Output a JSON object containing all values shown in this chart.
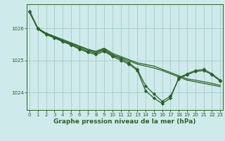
{
  "background_color": "#ceeaea",
  "grid_color": "#a8cccc",
  "line_color": "#2d612d",
  "xlabel": "Graphe pression niveau de la mer (hPa)",
  "xlabel_fontsize": 6.5,
  "tick_fontsize": 5,
  "xlim": [
    -0.3,
    23.3
  ],
  "ylim": [
    1023.45,
    1026.75
  ],
  "yticks": [
    1024,
    1025,
    1026
  ],
  "xticks": [
    0,
    1,
    2,
    3,
    4,
    5,
    6,
    7,
    8,
    9,
    10,
    11,
    12,
    13,
    14,
    15,
    16,
    17,
    18,
    19,
    20,
    21,
    22,
    23
  ],
  "series": [
    {
      "x": [
        0,
        1,
        2,
        3,
        4,
        5,
        6,
        7,
        8,
        9,
        10,
        11,
        12,
        13,
        14,
        15,
        16,
        17,
        18,
        19,
        20,
        21,
        22,
        23
      ],
      "y": [
        1026.55,
        1026.0,
        1025.85,
        1025.75,
        1025.65,
        1025.55,
        1025.45,
        1025.35,
        1025.28,
        1025.38,
        1025.22,
        1025.12,
        1025.02,
        1024.92,
        1024.87,
        1024.82,
        1024.72,
        1024.62,
        1024.52,
        1024.42,
        1024.38,
        1024.33,
        1024.28,
        1024.22
      ],
      "marker": null,
      "lw": 0.9
    },
    {
      "x": [
        0,
        1,
        2,
        3,
        4,
        5,
        6,
        7,
        8,
        9,
        10,
        11,
        12,
        13,
        14,
        15,
        16,
        17,
        18,
        19,
        20,
        21,
        22,
        23
      ],
      "y": [
        1026.52,
        1026.0,
        1025.83,
        1025.73,
        1025.62,
        1025.52,
        1025.42,
        1025.32,
        1025.25,
        1025.35,
        1025.18,
        1025.08,
        1024.98,
        1024.88,
        1024.82,
        1024.76,
        1024.68,
        1024.58,
        1024.48,
        1024.38,
        1024.33,
        1024.28,
        1024.23,
        1024.18
      ],
      "marker": null,
      "lw": 0.9
    },
    {
      "x": [
        0,
        1,
        2,
        3,
        4,
        5,
        6,
        7,
        8,
        9,
        10,
        11,
        12,
        13,
        14,
        15,
        16,
        17,
        18,
        19,
        20,
        21,
        22,
        23
      ],
      "y": [
        1026.52,
        1026.0,
        1025.82,
        1025.72,
        1025.6,
        1025.5,
        1025.38,
        1025.28,
        1025.22,
        1025.32,
        1025.15,
        1025.05,
        1024.92,
        1024.72,
        1024.2,
        1023.95,
        1023.72,
        1023.88,
        1024.42,
        1024.55,
        1024.65,
        1024.68,
        1024.55,
        1024.35
      ],
      "marker": "D",
      "lw": 0.9
    },
    {
      "x": [
        0,
        1,
        2,
        3,
        4,
        5,
        6,
        7,
        8,
        9,
        10,
        11,
        12,
        13,
        14,
        15,
        16,
        17,
        18,
        19,
        20,
        21,
        22,
        23
      ],
      "y": [
        1026.5,
        1025.98,
        1025.8,
        1025.7,
        1025.58,
        1025.48,
        1025.35,
        1025.25,
        1025.18,
        1025.28,
        1025.12,
        1025.0,
        1024.88,
        1024.68,
        1024.05,
        1023.82,
        1023.65,
        1023.82,
        1024.46,
        1024.58,
        1024.68,
        1024.72,
        1024.58,
        1024.38
      ],
      "marker": "D",
      "lw": 0.9
    }
  ]
}
